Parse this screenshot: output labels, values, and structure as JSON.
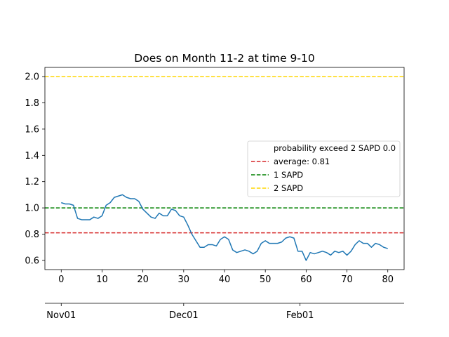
{
  "chart_data": {
    "type": "line",
    "title": "Does on Month 11-2 at time 9-10",
    "xlabel": "",
    "ylabel": "",
    "xlim": [
      -4,
      84
    ],
    "ylim": [
      0.53,
      2.07
    ],
    "x_ticks": [
      0,
      10,
      20,
      30,
      40,
      50,
      60,
      70,
      80
    ],
    "y_ticks": [
      0.6,
      0.8,
      1.0,
      1.2,
      1.4,
      1.6,
      1.8,
      2.0
    ],
    "y_tick_labels": [
      "0.6",
      "0.8",
      "1.0",
      "1.2",
      "1.4",
      "1.6",
      "1.8",
      "2.0"
    ],
    "grid": false,
    "series": [
      {
        "color": "#1f77b4",
        "x": [
          0,
          1,
          2,
          3,
          4,
          5,
          6,
          7,
          8,
          9,
          10,
          11,
          12,
          13,
          14,
          15,
          16,
          17,
          18,
          19,
          20,
          21,
          22,
          23,
          24,
          25,
          26,
          27,
          28,
          29,
          30,
          31,
          32,
          33,
          34,
          35,
          36,
          37,
          38,
          39,
          40,
          41,
          42,
          43,
          44,
          45,
          46,
          47,
          48,
          49,
          50,
          51,
          52,
          53,
          54,
          55,
          56,
          57,
          58,
          59,
          60,
          61,
          62,
          63,
          64,
          65,
          66,
          67,
          68,
          69,
          70,
          71,
          72,
          73,
          74,
          75,
          76,
          77,
          78,
          79,
          80
        ],
        "values": [
          1.04,
          1.03,
          1.03,
          1.02,
          0.92,
          0.91,
          0.91,
          0.91,
          0.93,
          0.92,
          0.94,
          1.02,
          1.04,
          1.08,
          1.09,
          1.1,
          1.08,
          1.07,
          1.07,
          1.05,
          0.99,
          0.96,
          0.93,
          0.92,
          0.96,
          0.94,
          0.94,
          0.99,
          0.98,
          0.94,
          0.93,
          0.87,
          0.8,
          0.75,
          0.7,
          0.7,
          0.72,
          0.72,
          0.71,
          0.76,
          0.78,
          0.76,
          0.68,
          0.66,
          0.67,
          0.68,
          0.67,
          0.65,
          0.67,
          0.73,
          0.75,
          0.73,
          0.73,
          0.73,
          0.74,
          0.77,
          0.78,
          0.77,
          0.67,
          0.67,
          0.6,
          0.66,
          0.65,
          0.66,
          0.67,
          0.66,
          0.64,
          0.67,
          0.66,
          0.67,
          0.64,
          0.67,
          0.72,
          0.75,
          0.73,
          0.73,
          0.7,
          0.73,
          0.72,
          0.7,
          0.69
        ]
      }
    ],
    "hlines": [
      {
        "label": "average: 0.81",
        "value": 0.81,
        "color": "#d62728"
      },
      {
        "label": "1 SAPD",
        "value": 1.0,
        "color": "#008000"
      },
      {
        "label": "2 SAPD",
        "value": 2.0,
        "color": "#ffd700"
      }
    ],
    "legend": {
      "placement": "center-right",
      "entries": [
        {
          "label": "probability exceed 2 SAPD 0.0",
          "color": ""
        },
        {
          "label": "average: 0.81",
          "color": "#d62728"
        },
        {
          "label": "1 SAPD",
          "color": "#008000"
        },
        {
          "label": "2 SAPD",
          "color": "#ffd700"
        }
      ]
    },
    "secondary_x_axis": {
      "tick_labels": [
        "Nov01",
        "Dec01",
        "Feb01"
      ],
      "tick_values": [
        0,
        30,
        58.5
      ]
    }
  }
}
